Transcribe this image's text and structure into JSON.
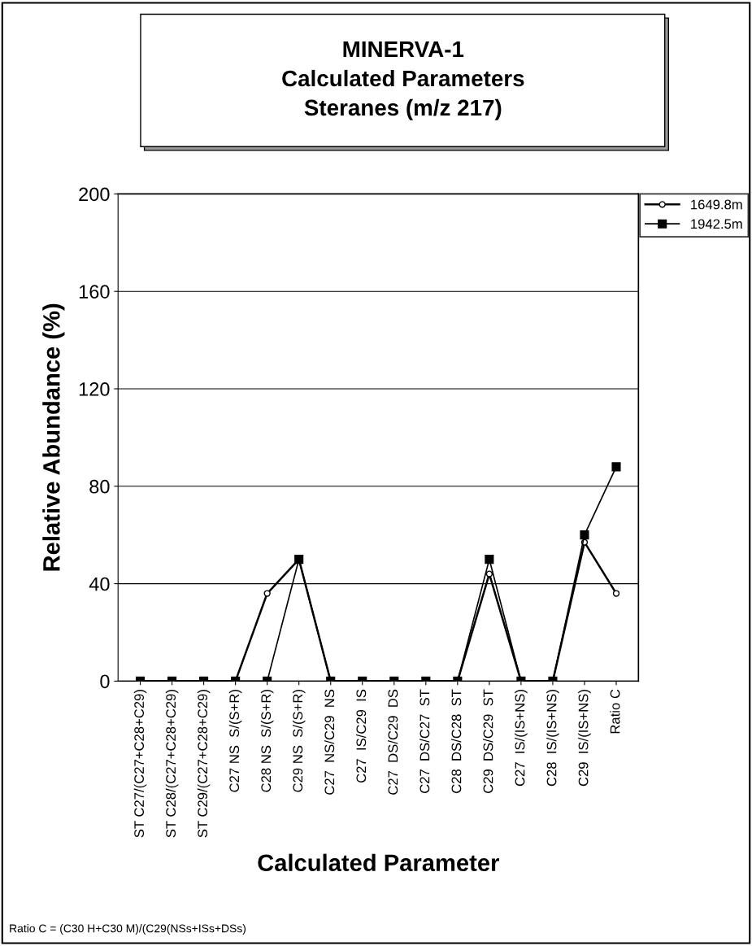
{
  "chart_data": {
    "type": "line",
    "title": "MINERVA-1\nCalculated Parameters\nSteranes (m/z 217)",
    "xlabel": "Calculated Parameter",
    "ylabel": "Relative Abundance (%)",
    "categories": [
      "ST C27/(C27+C28+C29)",
      "ST C28/(C27+C28+C29)",
      "ST C29/(C27+C28+C29)",
      "C27 NS  S/(S+R)",
      "C28 NS  S/(S+R)",
      "C29 NS  S/(S+R)",
      "C27  NS/C29  NS",
      "C27  IS/C29  IS",
      "C27  DS/C29  DS",
      "C27  DS/C27  ST",
      "C28  DS/C28  ST",
      "C29  DS/C29  ST",
      "C27  IS/(IS+NS)",
      "C28  IS/(IS+NS)",
      "C29  IS/(IS+NS)",
      "Ratio C"
    ],
    "series": [
      {
        "name": "1649.8m",
        "color": "#000000",
        "marker": "circle",
        "values": [
          0,
          0,
          0,
          0,
          36,
          50,
          0,
          0,
          0,
          0,
          0,
          44,
          0,
          0,
          57,
          36
        ]
      },
      {
        "name": "1942.5m",
        "color": "#000000",
        "marker": "square",
        "values": [
          0,
          0,
          0,
          0,
          0,
          50,
          0,
          0,
          0,
          0,
          0,
          50,
          0,
          0,
          60,
          88
        ]
      }
    ],
    "ylim": [
      0,
      200
    ],
    "yticks": [
      0,
      40,
      80,
      120,
      160,
      200
    ],
    "grid": "y",
    "legend": "top right",
    "line_style": "solid",
    "annotations": [
      "Ratio C = (C30 H+C30 M)/(C29(NSs+ISs+DSs)"
    ]
  }
}
